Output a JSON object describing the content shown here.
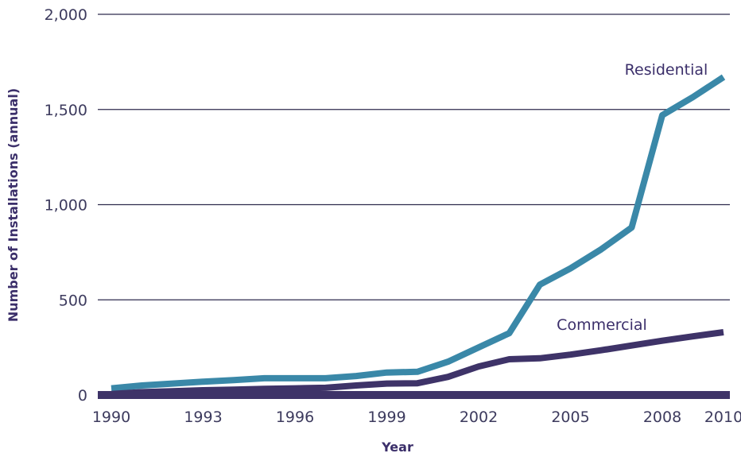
{
  "chart_data": {
    "type": "line",
    "xlabel": "Year",
    "ylabel": "Number of Installations (annual)",
    "ylim": [
      0,
      2000
    ],
    "xlim": [
      1990,
      2010
    ],
    "yticks": [
      {
        "value": 0,
        "label": "0"
      },
      {
        "value": 500,
        "label": "500"
      },
      {
        "value": 1000,
        "label": "1,000"
      },
      {
        "value": 1500,
        "label": "1,500"
      },
      {
        "value": 2000,
        "label": "2,000"
      }
    ],
    "xticks": [
      {
        "value": 1990,
        "label": "1990"
      },
      {
        "value": 1993,
        "label": "1993"
      },
      {
        "value": 1996,
        "label": "1996"
      },
      {
        "value": 1999,
        "label": "1999"
      },
      {
        "value": 2002,
        "label": "2002"
      },
      {
        "value": 2005,
        "label": "2005"
      },
      {
        "value": 2008,
        "label": "2008"
      },
      {
        "value": 2010,
        "label": "2010"
      }
    ],
    "grid": true,
    "x": [
      1990,
      1991,
      1992,
      1993,
      1994,
      1995,
      1996,
      1997,
      1998,
      1999,
      2000,
      2001,
      2002,
      2003,
      2004,
      2005,
      2006,
      2007,
      2008,
      2009,
      2010
    ],
    "series": [
      {
        "name": "Residential",
        "color": "#3a88a8",
        "values": [
          35,
          50,
          60,
          70,
          78,
          88,
          88,
          88,
          100,
          118,
          122,
          175,
          250,
          325,
          580,
          665,
          765,
          880,
          1470,
          1565,
          1670
        ]
      },
      {
        "name": "Commercial",
        "color": "#3e3368",
        "values": [
          5,
          15,
          20,
          25,
          28,
          32,
          35,
          38,
          50,
          60,
          62,
          95,
          150,
          188,
          193,
          212,
          235,
          260,
          285,
          308,
          330
        ]
      }
    ],
    "baseline_color": "#3e3368"
  }
}
